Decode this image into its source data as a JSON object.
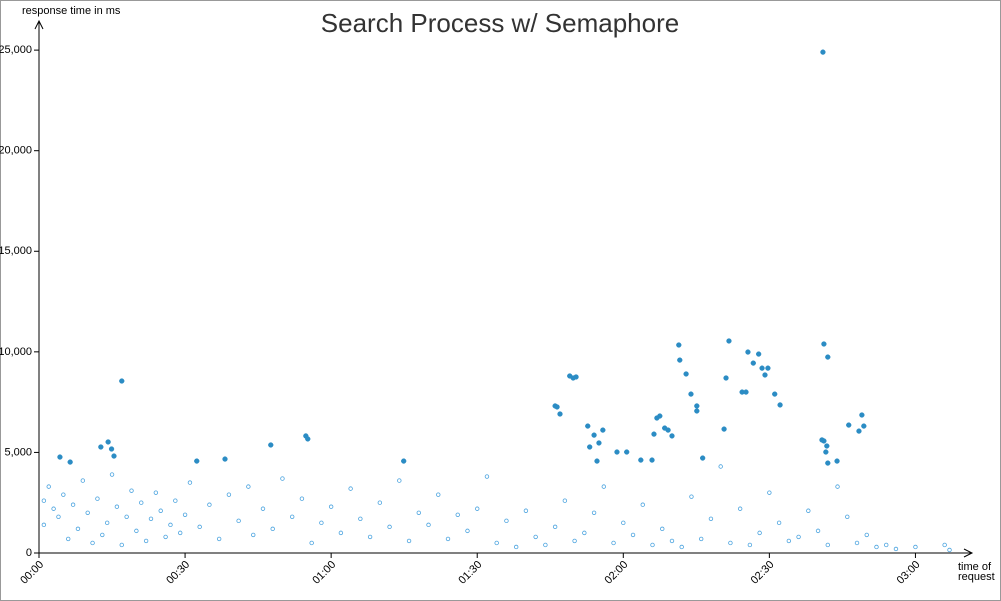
{
  "chart_data": {
    "type": "scatter",
    "title": "Search Process w/ Semaphore",
    "y_label": "response time in ms",
    "x_label": [
      "time of",
      "request"
    ],
    "xlim": [
      0,
      191
    ],
    "ylim": [
      0,
      26000
    ],
    "xticks": [
      {
        "value": 0,
        "label": "00:00"
      },
      {
        "value": 30,
        "label": "00:30"
      },
      {
        "value": 60,
        "label": "01:00"
      },
      {
        "value": 90,
        "label": "01:30"
      },
      {
        "value": 120,
        "label": "02:00"
      },
      {
        "value": 150,
        "label": "02:30"
      },
      {
        "value": 180,
        "label": "03:00"
      }
    ],
    "yticks": [
      {
        "value": 0,
        "label": "0"
      },
      {
        "value": 5000,
        "label": "5,000"
      },
      {
        "value": 10000,
        "label": "10,000"
      },
      {
        "value": 15000,
        "label": "15,000"
      },
      {
        "value": 20000,
        "label": "20,000"
      },
      {
        "value": 25000,
        "label": "25,000"
      }
    ],
    "series": [
      {
        "marker": "open",
        "color": "#4aa3df",
        "x": [
          1,
          1,
          2,
          3,
          4,
          5,
          6,
          7,
          8,
          9,
          10,
          11,
          12,
          13,
          14,
          15,
          16,
          17,
          18,
          19,
          20,
          21,
          22,
          23,
          24,
          25,
          26,
          27,
          28,
          29,
          30,
          31,
          33,
          35,
          37,
          39,
          41,
          43,
          44,
          46,
          48,
          50,
          52,
          54,
          56,
          58,
          60,
          62,
          64,
          66,
          68,
          70,
          72,
          74,
          76,
          78,
          80,
          82,
          84,
          86,
          88,
          90,
          92,
          94,
          96,
          98,
          100,
          102,
          104,
          106,
          108,
          110,
          112,
          114,
          116,
          118,
          120,
          122,
          124,
          126,
          128,
          130,
          132,
          134,
          136,
          138,
          140,
          142,
          144,
          146,
          148,
          150,
          152,
          154,
          156,
          158,
          160,
          162,
          164,
          166,
          168,
          170,
          172,
          174,
          176,
          180,
          186,
          187
        ],
        "values": [
          1400,
          2600,
          3300,
          2200,
          1800,
          2900,
          700,
          2400,
          1200,
          3600,
          2000,
          500,
          2700,
          900,
          1500,
          3900,
          2300,
          400,
          1800,
          3100,
          1100,
          2500,
          600,
          1700,
          3000,
          2100,
          800,
          1400,
          2600,
          1000,
          1900,
          3500,
          1300,
          2400,
          700,
          2900,
          1600,
          3300,
          900,
          2200,
          1200,
          3700,
          1800,
          2700,
          500,
          1500,
          2300,
          1000,
          3200,
          1700,
          800,
          2500,
          1300,
          3600,
          600,
          2000,
          1400,
          2900,
          700,
          1900,
          1100,
          2200,
          3800,
          500,
          1600,
          300,
          2100,
          800,
          400,
          1300,
          2600,
          600,
          1000,
          2000,
          3300,
          500,
          1500,
          900,
          2400,
          400,
          1200,
          600,
          300,
          2800,
          700,
          1700,
          4300,
          500,
          2200,
          400,
          1000,
          3000,
          1500,
          600,
          800,
          2100,
          1100,
          400,
          3300,
          1800,
          500,
          900,
          300,
          400,
          200,
          300,
          400,
          150
        ]
      },
      {
        "marker": "filled",
        "color": "#2b8cc4",
        "x": [
          4.3,
          6.4,
          12.7,
          14.2,
          14.9,
          15.4,
          17,
          32.4,
          38.2,
          47.6,
          54.8,
          55.2,
          74.9,
          106,
          106.4,
          107,
          109,
          109.7,
          110.3,
          112.7,
          113.1,
          114,
          114.6,
          115,
          115.8,
          118.7,
          120.7,
          123.6,
          125.9,
          126.3,
          126.9,
          127.5,
          128.5,
          129.2,
          130,
          131.4,
          131.6,
          132.9,
          133.9,
          135.1,
          135.1,
          136.3,
          140.7,
          141.1,
          141.7,
          144.4,
          145.2,
          145.6,
          146.7,
          147.8,
          148.5,
          149.1,
          149.7,
          151.1,
          152.2,
          161,
          161.2,
          162,
          160.8,
          161.2,
          161.6,
          161.8,
          162,
          163.9,
          166.3,
          168.4,
          169,
          169.4
        ],
        "values": [
          4770,
          4520,
          5270,
          5520,
          5170,
          4820,
          8550,
          4570,
          4670,
          5370,
          5820,
          5670,
          4570,
          7310,
          7260,
          6910,
          8800,
          8700,
          8750,
          6310,
          5270,
          5860,
          4570,
          5470,
          6110,
          5020,
          5020,
          4620,
          4620,
          5910,
          6710,
          6810,
          6210,
          6110,
          5820,
          10340,
          9590,
          8900,
          7900,
          7310,
          7060,
          4720,
          6160,
          8700,
          10540,
          8000,
          8000,
          9990,
          9440,
          9890,
          9190,
          8850,
          9190,
          7900,
          7360,
          24900,
          10390,
          9740,
          5620,
          5570,
          5020,
          5320,
          4470,
          4570,
          6360,
          6060,
          6860,
          6310
        ]
      }
    ]
  }
}
